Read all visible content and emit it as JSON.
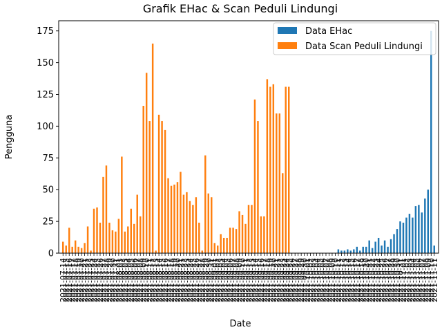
{
  "chart_data": {
    "type": "bar",
    "title": "Grafik EHac & Scan Peduli Lindungi",
    "xlabel": "Date",
    "ylabel": "Pengguna",
    "ylim": [
      0,
      183
    ],
    "yticks": [
      0,
      25,
      50,
      75,
      100,
      125,
      150,
      175
    ],
    "legend_position": "top-right",
    "series": [
      {
        "name": "Data EHac",
        "color": "#1f77b4",
        "values": [
          0,
          0,
          0,
          0,
          0,
          0,
          0,
          0,
          0,
          0,
          0,
          0,
          0,
          0,
          0,
          0,
          0,
          0,
          0,
          0,
          0,
          0,
          0,
          0,
          0,
          0,
          0,
          0,
          0,
          0,
          0,
          0,
          0,
          0,
          0,
          0,
          0,
          0,
          0,
          0,
          0,
          0,
          0,
          0,
          0,
          0,
          0,
          0,
          0,
          0,
          0,
          0,
          0,
          0,
          0,
          0,
          0,
          0,
          0,
          0,
          0,
          0,
          0,
          0,
          0,
          0,
          0,
          0,
          0,
          0,
          0,
          0,
          0,
          0,
          0,
          0,
          0,
          0,
          0,
          0,
          0,
          0,
          0,
          0,
          0,
          0,
          0,
          0,
          0,
          3,
          2,
          2,
          3,
          2,
          3,
          5,
          2,
          5,
          5,
          10,
          4,
          9,
          12,
          6,
          10,
          5,
          11,
          15,
          19,
          25,
          24,
          28,
          31,
          28,
          37,
          38,
          32,
          43,
          50,
          175,
          6
        ]
      },
      {
        "name": "Data Scan Peduli Lindungi",
        "color": "#ff7f0e",
        "values": [
          9,
          6,
          20,
          5,
          10,
          5,
          4,
          8,
          21,
          2,
          35,
          36,
          24,
          60,
          69,
          24,
          18,
          17,
          27,
          76,
          17,
          21,
          35,
          23,
          46,
          29,
          116,
          142,
          104,
          165,
          2,
          109,
          104,
          97,
          59,
          53,
          54,
          56,
          64,
          46,
          48,
          41,
          38,
          44,
          24,
          2,
          77,
          47,
          44,
          8,
          6,
          15,
          12,
          12,
          20,
          20,
          19,
          33,
          30,
          23,
          38,
          38,
          121,
          104,
          29,
          29,
          137,
          131,
          133,
          110,
          110,
          63,
          131,
          131,
          0,
          0,
          0,
          0,
          0,
          0,
          0,
          0,
          0,
          0,
          0,
          0,
          0,
          0,
          0,
          0,
          0,
          0,
          0,
          0,
          0,
          0,
          0,
          0,
          0,
          0,
          0,
          0,
          0,
          0,
          0,
          0,
          0,
          0,
          0,
          0,
          0,
          0,
          0,
          0,
          0,
          0,
          0,
          0,
          0,
          0,
          0
        ]
      }
    ],
    "categories": [
      "2021-07-14",
      "2021-07-15",
      "2021-07-16",
      "2021-07-17",
      "2021-07-18",
      "2021-07-19",
      "2021-07-20",
      "2021-07-21",
      "2021-07-22",
      "2021-07-23",
      "2021-07-24",
      "2021-07-25",
      "2021-07-26",
      "2021-07-27",
      "2021-07-28",
      "2021-07-29",
      "2021-07-30",
      "2021-07-31",
      "2021-08-01",
      "2021-08-02",
      "2021-08-03",
      "2021-08-04",
      "2021-08-05",
      "2021-08-06",
      "2021-08-07",
      "2021-08-08",
      "2021-08-09",
      "2021-08-10",
      "2021-08-11",
      "2021-08-12",
      "2021-08-13",
      "2021-08-14",
      "2021-08-15",
      "2021-08-16",
      "2021-08-17",
      "2021-08-18",
      "2021-08-19",
      "2021-08-20",
      "2021-08-21",
      "2021-08-22",
      "2021-08-23",
      "2021-08-24",
      "2021-08-25",
      "2021-08-26",
      "2021-08-27",
      "2021-08-28",
      "2021-08-29",
      "2021-08-30",
      "2021-08-31",
      "2021-09-01",
      "2021-09-02",
      "2021-09-03",
      "2021-09-04",
      "2021-09-05",
      "2021-09-06",
      "2021-09-07",
      "2021-09-08",
      "2021-09-09",
      "2021-09-10",
      "2021-09-11",
      "2021-09-12",
      "2021-09-13",
      "2021-09-14",
      "2021-09-15",
      "2021-09-16",
      "2021-09-17",
      "2021-09-18",
      "2021-09-19",
      "2021-09-20",
      "2021-09-21",
      "2021-09-22",
      "2021-09-23",
      "2021-09-24",
      "2021-09-25",
      "2021-09-26",
      "2021-09-27",
      "2021-09-28",
      "2021-09-29",
      "2021-09-30",
      "2021-10-01",
      "2021-10-02",
      "2021-10-03",
      "2021-10-04",
      "2021-10-05",
      "2021-10-06",
      "2021-10-07",
      "2021-10-08",
      "2021-10-09",
      "2021-10-10",
      "2021-10-11",
      "2021-10-12",
      "2021-10-13",
      "2021-10-14",
      "2021-10-15",
      "2021-10-16",
      "2021-10-17",
      "2021-10-18",
      "2021-10-19",
      "2021-10-20",
      "2021-10-21",
      "2021-10-22",
      "2021-10-23",
      "2021-10-24",
      "2021-10-25",
      "2021-10-26",
      "2021-10-27",
      "2021-10-28",
      "2021-10-29",
      "2021-10-30",
      "2021-10-31",
      "2021-11-01",
      "2021-11-02",
      "2021-11-03",
      "2021-11-04",
      "2021-11-05",
      "2021-11-06",
      "2021-11-07",
      "2021-11-08",
      "2021-11-09",
      "2021-11-10",
      "2021-11-11"
    ]
  }
}
